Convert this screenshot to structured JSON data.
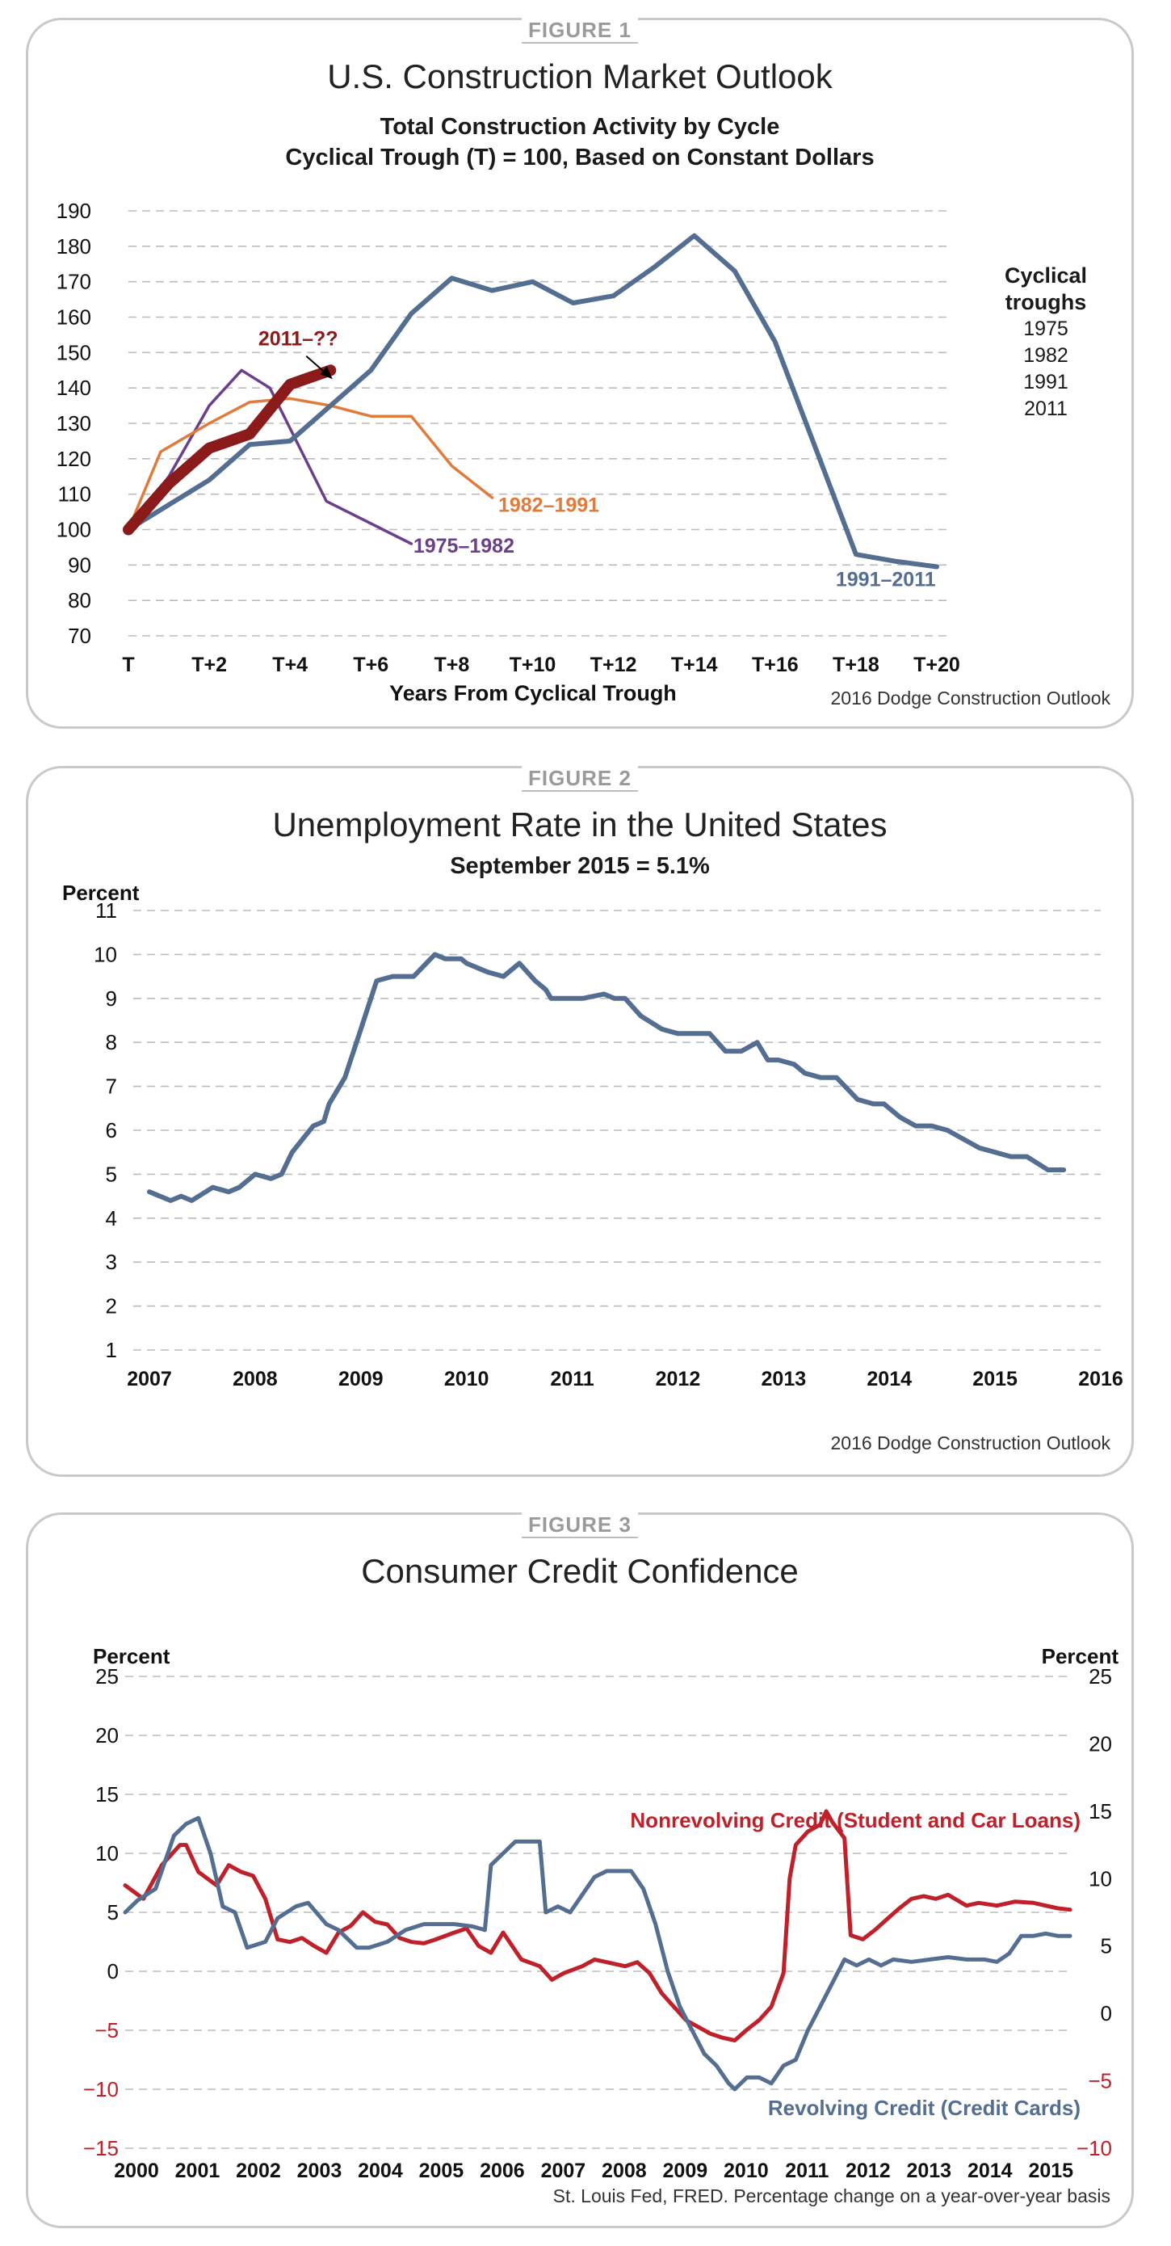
{
  "figure1": {
    "label": "FIGURE 1",
    "title": "U.S. Construction Market Outlook",
    "subtitle1": "Total Construction Activity by Cycle",
    "subtitle2": "Cyclical Trough (T) = 100, Based on Constant Dollars",
    "source": "2016 Dodge Construction Outlook",
    "legend_title_1": "Cyclical",
    "legend_title_2": "troughs",
    "legend_items": [
      "1975",
      "1982",
      "1991",
      "2011"
    ],
    "colors": {
      "c1975": "#6b3f8c",
      "c1982": "#e07b3c",
      "c1991": "#546e91",
      "c2011": "#8b1a1a"
    }
  },
  "figure2": {
    "label": "FIGURE 2",
    "title": "Unemployment Rate in the United States",
    "subtitle": "September 2015 = 5.1%",
    "source": "2016 Dodge Construction Outlook",
    "color": "#546e91"
  },
  "figure3": {
    "label": "FIGURE 3",
    "title": "Consumer Credit Confidence",
    "source": "St. Louis Fed, FRED. Percentage change on a year-over-year basis",
    "colors": {
      "nonrevolving": "#c0202a",
      "revolving": "#546e91"
    }
  },
  "chart_data": [
    {
      "type": "line",
      "title": "U.S. Construction Market Outlook",
      "xlabel": "Years From Cyclical Trough",
      "ylabel": "",
      "ylim": [
        70,
        190
      ],
      "yticks": [
        70,
        80,
        90,
        100,
        110,
        120,
        130,
        140,
        150,
        160,
        170,
        180,
        190
      ],
      "xlim": [
        0,
        20
      ],
      "xticks": [
        0,
        2,
        4,
        6,
        8,
        10,
        12,
        14,
        16,
        18,
        20
      ],
      "xtick_labels": [
        "T",
        "T+2",
        "T+4",
        "T+6",
        "T+8",
        "T+10",
        "T+12",
        "T+14",
        "T+16",
        "T+18",
        "T+20"
      ],
      "series": [
        {
          "name": "1975–1982",
          "x": [
            0,
            1,
            2,
            2.8,
            3.5,
            4.9,
            7
          ],
          "values": [
            100,
            115,
            135,
            145,
            140,
            108,
            96
          ]
        },
        {
          "name": "1982–1991",
          "x": [
            0,
            0.8,
            2,
            3,
            4,
            5,
            6,
            7,
            8,
            9
          ],
          "values": [
            100,
            122,
            130,
            136,
            137,
            135,
            132,
            132,
            118,
            109
          ]
        },
        {
          "name": "1991–2011",
          "x": [
            0,
            2,
            3,
            4,
            5,
            6,
            7,
            8,
            9,
            10,
            11,
            12,
            13,
            14,
            15,
            16,
            17,
            18,
            19,
            20
          ],
          "values": [
            100,
            114,
            124,
            125,
            135,
            145,
            161,
            171,
            167.5,
            170,
            164,
            166,
            174,
            183,
            173,
            153,
            123,
            93,
            91,
            89.5
          ]
        },
        {
          "name": "2011–??",
          "x": [
            0,
            1,
            2,
            3,
            4,
            5
          ],
          "values": [
            100,
            113,
            123,
            127,
            141,
            145
          ]
        }
      ],
      "annotations": [
        {
          "text": "2011–??",
          "series": "2011–??"
        },
        {
          "text": "1982–1991",
          "series": "1982–1991"
        },
        {
          "text": "1975–1982",
          "series": "1975–1982"
        },
        {
          "text": "1991–2011",
          "series": "1991–2011"
        }
      ]
    },
    {
      "type": "line",
      "title": "Unemployment Rate in the United States",
      "subtitle": "September 2015 = 5.1%",
      "ylabel": "Percent",
      "ylim": [
        1,
        11
      ],
      "yticks": [
        1,
        2,
        3,
        4,
        5,
        6,
        7,
        8,
        9,
        10,
        11
      ],
      "xlim": [
        2007,
        2016
      ],
      "xticks": [
        2007,
        2008,
        2009,
        2010,
        2011,
        2012,
        2013,
        2014,
        2015,
        2016
      ],
      "series": [
        {
          "name": "Unemployment rate",
          "x": [
            2007.0,
            2007.2,
            2007.3,
            2007.4,
            2007.6,
            2007.75,
            2007.85,
            2008.0,
            2008.15,
            2008.25,
            2008.35,
            2008.45,
            2008.55,
            2008.65,
            2008.7,
            2008.85,
            2009.0,
            2009.15,
            2009.3,
            2009.5,
            2009.7,
            2009.8,
            2009.95,
            2010.0,
            2010.2,
            2010.35,
            2010.5,
            2010.65,
            2010.75,
            2010.8,
            2010.9,
            2011.0,
            2011.1,
            2011.3,
            2011.4,
            2011.5,
            2011.65,
            2011.85,
            2012.0,
            2012.15,
            2012.3,
            2012.45,
            2012.6,
            2012.75,
            2012.85,
            2012.95,
            2013.1,
            2013.2,
            2013.35,
            2013.5,
            2013.7,
            2013.85,
            2013.95,
            2014.1,
            2014.25,
            2014.4,
            2014.55,
            2014.7,
            2014.85,
            2015.0,
            2015.15,
            2015.3,
            2015.5,
            2015.65
          ],
          "values": [
            4.6,
            4.4,
            4.5,
            4.4,
            4.7,
            4.6,
            4.7,
            5.0,
            4.9,
            5.0,
            5.5,
            5.8,
            6.1,
            6.2,
            6.6,
            7.2,
            8.3,
            9.4,
            9.5,
            9.5,
            10.0,
            9.9,
            9.9,
            9.8,
            9.6,
            9.5,
            9.8,
            9.4,
            9.2,
            9.0,
            9.0,
            9.0,
            9.0,
            9.1,
            9.0,
            9.0,
            8.6,
            8.3,
            8.2,
            8.2,
            8.2,
            7.8,
            7.8,
            8.0,
            7.6,
            7.6,
            7.5,
            7.3,
            7.2,
            7.2,
            6.7,
            6.6,
            6.6,
            6.3,
            6.1,
            6.1,
            6.0,
            5.8,
            5.6,
            5.5,
            5.4,
            5.4,
            5.1,
            5.1
          ]
        }
      ]
    },
    {
      "type": "line",
      "title": "Consumer Credit Confidence",
      "ylabel_left": "Percent",
      "ylabel_right": "Percent",
      "left_ylim": [
        -15,
        25
      ],
      "left_yticks": [
        -15,
        -10,
        -5,
        0,
        5,
        10,
        15,
        20,
        25
      ],
      "right_ylim": [
        -10,
        25
      ],
      "right_yticks": [
        -10,
        -5,
        0,
        5,
        10,
        15,
        20,
        25
      ],
      "xlim": [
        2000,
        2015.5
      ],
      "xticks": [
        2000,
        2001,
        2002,
        2003,
        2004,
        2005,
        2006,
        2007,
        2008,
        2009,
        2010,
        2011,
        2012,
        2013,
        2014,
        2015
      ],
      "series": [
        {
          "name": "Nonrevolving Credit (Student and Car Loans)",
          "axis": "right",
          "x": [
            2000.0,
            2000.3,
            2000.6,
            2000.9,
            2001.0,
            2001.2,
            2001.5,
            2001.7,
            2001.9,
            2002.1,
            2002.3,
            2002.5,
            2002.7,
            2002.9,
            2003.1,
            2003.3,
            2003.5,
            2003.7,
            2003.9,
            2004.1,
            2004.3,
            2004.5,
            2004.7,
            2004.9,
            2005.1,
            2005.4,
            2005.6,
            2005.8,
            2006.0,
            2006.2,
            2006.5,
            2006.8,
            2007.0,
            2007.2,
            2007.5,
            2007.7,
            2007.9,
            2008.2,
            2008.4,
            2008.6,
            2008.8,
            2009.0,
            2009.2,
            2009.4,
            2009.6,
            2009.8,
            2010.0,
            2010.2,
            2010.4,
            2010.6,
            2010.8,
            2010.9,
            2011.0,
            2011.2,
            2011.4,
            2011.5,
            2011.6,
            2011.8,
            2011.9,
            2012.1,
            2012.3,
            2012.5,
            2012.7,
            2012.9,
            2013.1,
            2013.3,
            2013.5,
            2013.8,
            2014.0,
            2014.3,
            2014.6,
            2014.9,
            2015.1,
            2015.3,
            2015.5
          ],
          "values": [
            9.5,
            8.5,
            11.0,
            12.5,
            12.5,
            10.5,
            9.5,
            11.0,
            10.5,
            10.2,
            8.5,
            5.5,
            5.3,
            5.6,
            5.0,
            4.5,
            6.0,
            6.5,
            7.5,
            6.8,
            6.6,
            5.6,
            5.3,
            5.2,
            5.5,
            6.0,
            6.3,
            5.0,
            4.5,
            6.0,
            4.0,
            3.5,
            2.5,
            3.0,
            3.5,
            4.0,
            3.8,
            3.5,
            3.8,
            3.0,
            1.5,
            0.5,
            -0.5,
            -1.0,
            -1.5,
            -1.8,
            -2.0,
            -1.2,
            -0.5,
            0.5,
            3.0,
            10.0,
            12.5,
            13.5,
            14.0,
            15.0,
            14.2,
            13.0,
            5.8,
            5.5,
            6.2,
            7.0,
            7.8,
            8.5,
            8.7,
            8.5,
            8.8,
            8.0,
            8.2,
            8.0,
            8.3,
            8.2,
            8.0,
            7.8,
            7.7
          ]
        },
        {
          "name": "Revolving Credit (Credit Cards)",
          "axis": "left",
          "x": [
            2000.0,
            2000.2,
            2000.5,
            2000.8,
            2001.0,
            2001.2,
            2001.4,
            2001.6,
            2001.8,
            2002.0,
            2002.3,
            2002.5,
            2002.8,
            2003.0,
            2003.3,
            2003.5,
            2003.8,
            2004.0,
            2004.3,
            2004.6,
            2004.9,
            2005.1,
            2005.4,
            2005.7,
            2005.9,
            2006.0,
            2006.2,
            2006.4,
            2006.6,
            2006.8,
            2006.9,
            2007.1,
            2007.3,
            2007.5,
            2007.7,
            2007.9,
            2008.1,
            2008.3,
            2008.5,
            2008.7,
            2008.9,
            2009.1,
            2009.3,
            2009.5,
            2009.7,
            2009.9,
            2010.0,
            2010.2,
            2010.4,
            2010.6,
            2010.8,
            2011.0,
            2011.2,
            2011.4,
            2011.6,
            2011.8,
            2012.0,
            2012.2,
            2012.4,
            2012.6,
            2012.9,
            2013.2,
            2013.5,
            2013.8,
            2014.1,
            2014.3,
            2014.5,
            2014.7,
            2014.9,
            2015.1,
            2015.3,
            2015.5
          ],
          "values": [
            5.0,
            6.0,
            7.0,
            11.5,
            12.5,
            13.0,
            10.0,
            5.5,
            5.0,
            2.0,
            2.5,
            4.5,
            5.5,
            5.8,
            4.0,
            3.5,
            2.0,
            2.0,
            2.5,
            3.5,
            4.0,
            4.0,
            4.0,
            3.8,
            3.5,
            9.0,
            10.0,
            11.0,
            11.0,
            11.0,
            5.0,
            5.5,
            5.0,
            6.5,
            8.0,
            8.5,
            8.5,
            8.5,
            7.0,
            4.0,
            0.0,
            -3.0,
            -5.0,
            -7.0,
            -8.0,
            -9.5,
            -10.0,
            -9.0,
            -9.0,
            -9.5,
            -8.0,
            -7.5,
            -5.0,
            -3.0,
            -1.0,
            1.0,
            0.5,
            1.0,
            0.5,
            1.0,
            0.8,
            1.0,
            1.2,
            1.0,
            1.0,
            0.8,
            1.5,
            3.0,
            3.0,
            3.2,
            3.0,
            3.0
          ]
        }
      ]
    }
  ]
}
